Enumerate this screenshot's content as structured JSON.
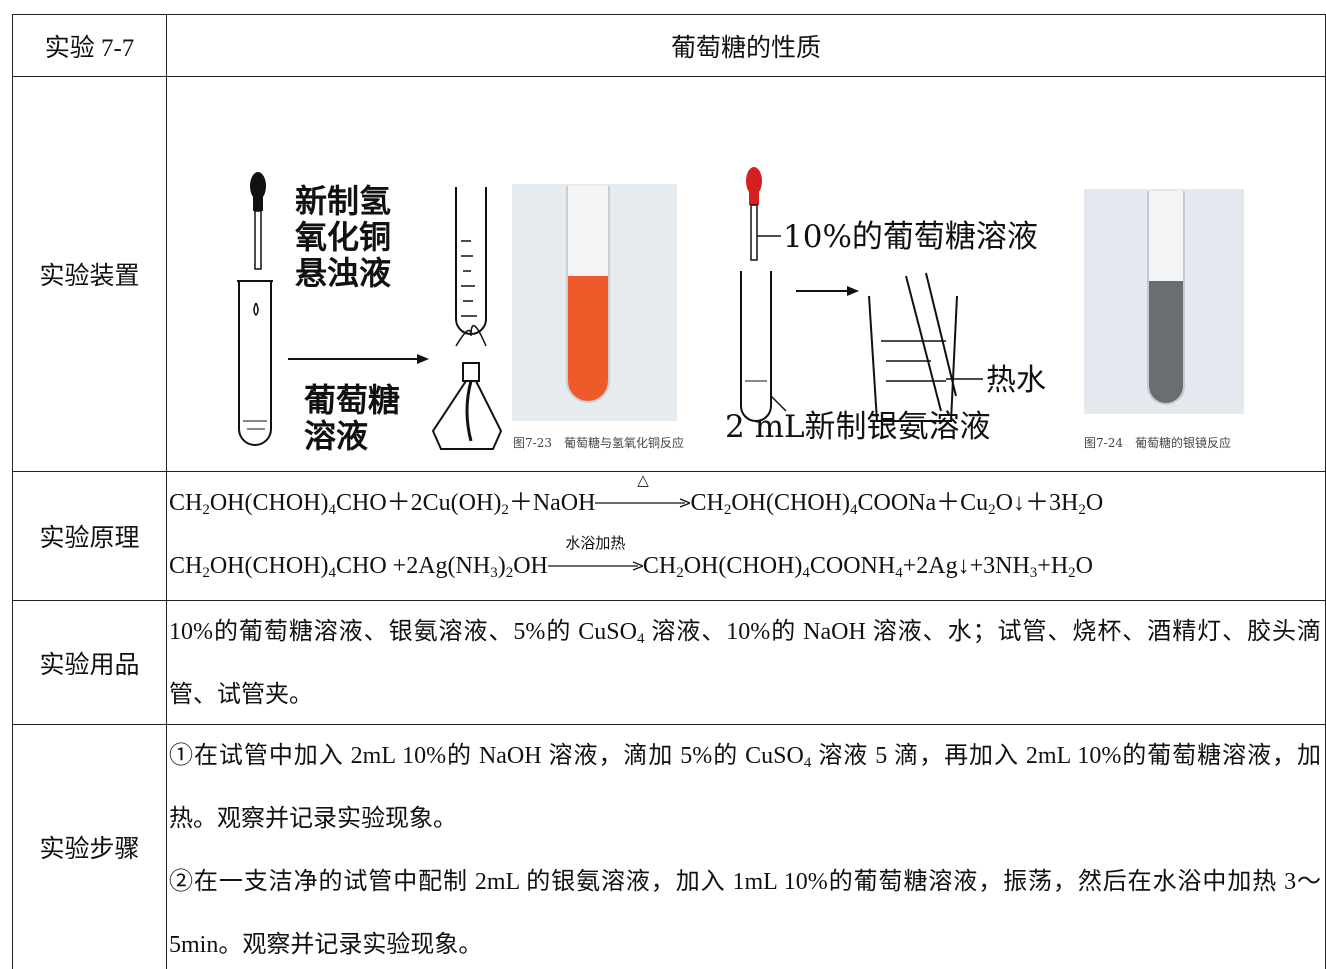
{
  "table": {
    "rows": [
      {
        "label": "实验 7-7",
        "content": "葡萄糖的性质"
      },
      {
        "label": "实验装置",
        "figure": {
          "left_reagent": [
            "新制氢",
            "氧化铜",
            "悬浊液"
          ],
          "left_solution": [
            "葡萄糖",
            "溶液"
          ],
          "caption_1": "图7-23　葡萄糖与氢氧化铜反应",
          "right_reagent": "10%的葡萄糖溶液",
          "right_water": "热水",
          "right_solution": "2 mL新制银氨溶液",
          "caption_2": "图7-24　葡萄糖的银镜反应"
        }
      },
      {
        "label": "实验原理",
        "equations": [
          [
            "CH",
            {
              "sub": "2"
            },
            "OH(CHOH)",
            {
              "sub": "4"
            },
            "CHO＋2Cu(OH)",
            {
              "sub": "2"
            },
            "＋NaOH",
            {
              "arrow": "△"
            },
            "CH",
            {
              "sub": "2"
            },
            "OH(CHOH)",
            {
              "sub": "4"
            },
            "COONa＋Cu",
            {
              "sub": "2"
            },
            "O↓＋3H",
            {
              "sub": "2"
            },
            "O"
          ],
          [
            "CH",
            {
              "sub": "2"
            },
            "OH(CHOH)",
            {
              "sub": "4"
            },
            "CHO +2Ag(NH",
            {
              "sub": "3"
            },
            ")",
            {
              "sub": "2"
            },
            "OH",
            {
              "arrow": "水浴加热"
            },
            "CH",
            {
              "sub": "2"
            },
            "OH(CHOH)",
            {
              "sub": "4"
            },
            "COONH",
            {
              "sub": "4"
            },
            "+2Ag↓+3NH",
            {
              "sub": "3"
            },
            "+H",
            {
              "sub": "2"
            },
            "O"
          ]
        ]
      },
      {
        "label": "实验用品",
        "paragraphs": [
          [
            "10%的葡萄糖溶液、银氨溶液、5%的 CuSO",
            {
              "sub": "4"
            },
            " 溶液、10%的 NaOH 溶液、水；试管、烧杯、酒精灯、胶头滴管、试管夹。"
          ]
        ]
      },
      {
        "label": "实验步骤",
        "paragraphs": [
          [
            "①在试管中加入 2mL 10%的 NaOH 溶液，滴加 5%的 CuSO",
            {
              "sub": "4"
            },
            " 溶液 5 滴，再加入 2mL 10%的葡萄糖溶液，加热。观察并记录实验现象。"
          ],
          [
            "②在一支洁净的试管中配制 2mL 的银氨溶液，加入 1mL 10%的葡萄糖溶液，振荡，然后在水浴中加热 3～5min。观察并记录实验现象。"
          ]
        ]
      }
    ]
  }
}
